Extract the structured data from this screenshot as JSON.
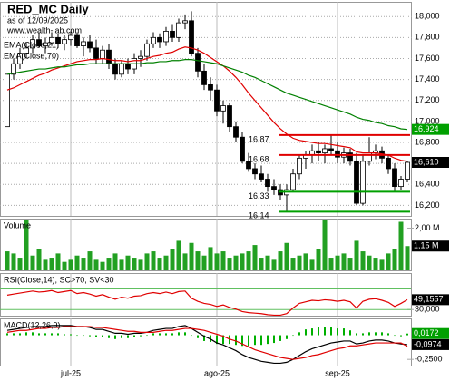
{
  "chart_data": [
    {
      "type": "candlestick",
      "title": "RED_MC Daily",
      "subtitle": "as of 12/09/2025",
      "source": "www.wealth-lab.com",
      "ylim": [
        16.1,
        18.14
      ],
      "yticks": [
        {
          "value": 16.2,
          "label": "16,200"
        },
        {
          "value": 16.4,
          "label": "16,400"
        },
        {
          "value": 16.6,
          "label": "16,600"
        },
        {
          "value": 16.8,
          "label": "16,800"
        },
        {
          "value": 17.0,
          "label": "17,000"
        },
        {
          "value": 17.2,
          "label": "17,200"
        },
        {
          "value": 17.4,
          "label": "17,400"
        },
        {
          "value": 17.6,
          "label": "17,600"
        },
        {
          "value": 17.8,
          "label": "17,800"
        },
        {
          "value": 18.0,
          "label": "18,000"
        }
      ],
      "grid": true,
      "ohlc": [
        [
          16.95,
          17.45,
          16.95,
          17.45
        ],
        [
          17.45,
          17.6,
          17.4,
          17.55
        ],
        [
          17.55,
          17.7,
          17.5,
          17.65
        ],
        [
          17.65,
          17.75,
          17.6,
          17.7
        ],
        [
          17.7,
          17.82,
          17.65,
          17.78
        ],
        [
          17.78,
          17.85,
          17.7,
          17.72
        ],
        [
          17.72,
          17.8,
          17.65,
          17.75
        ],
        [
          17.75,
          17.85,
          17.72,
          17.8
        ],
        [
          17.8,
          17.84,
          17.7,
          17.74
        ],
        [
          17.74,
          17.82,
          17.68,
          17.78
        ],
        [
          17.78,
          17.86,
          17.72,
          17.82
        ],
        [
          17.82,
          17.85,
          17.7,
          17.72
        ],
        [
          17.72,
          17.8,
          17.62,
          17.76
        ],
        [
          17.76,
          17.82,
          17.66,
          17.7
        ],
        [
          17.7,
          17.78,
          17.55,
          17.6
        ],
        [
          17.6,
          17.72,
          17.55,
          17.68
        ],
        [
          17.68,
          17.74,
          17.5,
          17.55
        ],
        [
          17.55,
          17.6,
          17.4,
          17.45
        ],
        [
          17.45,
          17.58,
          17.42,
          17.55
        ],
        [
          17.55,
          17.6,
          17.45,
          17.5
        ],
        [
          17.5,
          17.65,
          17.45,
          17.6
        ],
        [
          17.6,
          17.68,
          17.52,
          17.62
        ],
        [
          17.62,
          17.78,
          17.58,
          17.74
        ],
        [
          17.74,
          17.85,
          17.7,
          17.8
        ],
        [
          17.8,
          17.84,
          17.7,
          17.76
        ],
        [
          17.76,
          17.9,
          17.72,
          17.86
        ],
        [
          17.86,
          17.92,
          17.76,
          17.8
        ],
        [
          17.8,
          17.98,
          17.76,
          17.94
        ],
        [
          17.94,
          18.02,
          17.88,
          17.96
        ],
        [
          17.96,
          18.05,
          17.62,
          17.65
        ],
        [
          17.65,
          17.7,
          17.42,
          17.48
        ],
        [
          17.48,
          17.55,
          17.3,
          17.35
        ],
        [
          17.35,
          17.42,
          17.2,
          17.3
        ],
        [
          17.3,
          17.35,
          17.05,
          17.1
        ],
        [
          17.1,
          17.2,
          16.98,
          17.15
        ],
        [
          17.15,
          17.18,
          16.9,
          16.95
        ],
        [
          16.95,
          17.0,
          16.8,
          16.85
        ],
        [
          16.85,
          16.9,
          16.6,
          16.62
        ],
        [
          16.62,
          16.7,
          16.52,
          16.55
        ],
        [
          16.55,
          16.6,
          16.45,
          16.5
        ],
        [
          16.5,
          16.58,
          16.42,
          16.45
        ],
        [
          16.45,
          16.5,
          16.33,
          16.38
        ],
        [
          16.38,
          16.45,
          16.3,
          16.35
        ],
        [
          16.35,
          16.4,
          16.25,
          16.3
        ],
        [
          16.3,
          16.4,
          16.14,
          16.35
        ],
        [
          16.35,
          16.55,
          16.33,
          16.5
        ],
        [
          16.5,
          16.68,
          16.45,
          16.65
        ],
        [
          16.65,
          16.72,
          16.55,
          16.68
        ],
        [
          16.68,
          16.78,
          16.6,
          16.72
        ],
        [
          16.72,
          16.8,
          16.62,
          16.7
        ],
        [
          16.7,
          16.78,
          16.6,
          16.74
        ],
        [
          16.74,
          16.87,
          16.68,
          16.72
        ],
        [
          16.72,
          16.8,
          16.6,
          16.66
        ],
        [
          16.66,
          16.75,
          16.6,
          16.7
        ],
        [
          16.7,
          16.74,
          16.58,
          16.62
        ],
        [
          16.62,
          16.7,
          16.2,
          16.22
        ],
        [
          16.22,
          16.68,
          16.2,
          16.62
        ],
        [
          16.62,
          16.85,
          16.58,
          16.7
        ],
        [
          16.7,
          16.78,
          16.64,
          16.72
        ],
        [
          16.72,
          16.76,
          16.6,
          16.65
        ],
        [
          16.65,
          16.68,
          16.5,
          16.55
        ],
        [
          16.55,
          16.6,
          16.33,
          16.38
        ],
        [
          16.38,
          16.48,
          16.35,
          16.45
        ],
        [
          16.45,
          16.62,
          16.42,
          16.61
        ]
      ],
      "series": [
        {
          "name": "EMA(Close,21)",
          "color": "#e00000",
          "values": [
            17.3,
            17.32,
            17.35,
            17.38,
            17.41,
            17.44,
            17.46,
            17.49,
            17.51,
            17.53,
            17.55,
            17.57,
            17.58,
            17.59,
            17.59,
            17.6,
            17.59,
            17.58,
            17.58,
            17.57,
            17.58,
            17.58,
            17.6,
            17.62,
            17.63,
            17.65,
            17.66,
            17.69,
            17.71,
            17.7,
            17.68,
            17.65,
            17.61,
            17.57,
            17.53,
            17.48,
            17.42,
            17.35,
            17.27,
            17.2,
            17.13,
            17.06,
            16.99,
            16.93,
            16.88,
            16.84,
            16.82,
            16.81,
            16.8,
            16.79,
            16.79,
            16.78,
            16.77,
            16.76,
            16.75,
            16.71,
            16.7,
            16.7,
            16.7,
            16.69,
            16.68,
            16.65,
            16.63,
            16.62
          ]
        },
        {
          "name": "EMA(Close,70)",
          "color": "#008000",
          "values": [
            17.45,
            17.46,
            17.47,
            17.48,
            17.49,
            17.5,
            17.5,
            17.51,
            17.52,
            17.52,
            17.53,
            17.54,
            17.54,
            17.55,
            17.55,
            17.55,
            17.55,
            17.55,
            17.55,
            17.55,
            17.55,
            17.55,
            17.56,
            17.56,
            17.57,
            17.57,
            17.58,
            17.58,
            17.59,
            17.59,
            17.58,
            17.57,
            17.56,
            17.55,
            17.53,
            17.51,
            17.49,
            17.47,
            17.44,
            17.42,
            17.39,
            17.36,
            17.33,
            17.3,
            17.27,
            17.25,
            17.23,
            17.21,
            17.19,
            17.17,
            17.15,
            17.13,
            17.11,
            17.09,
            17.07,
            17.04,
            17.02,
            17.01,
            16.99,
            16.98,
            16.96,
            16.95,
            16.93,
            16.924
          ]
        }
      ],
      "levels": [
        {
          "value": 16.87,
          "label": "16,87",
          "color": "#e00000"
        },
        {
          "value": 16.68,
          "label": "16,68",
          "color": "#e00000"
        },
        {
          "value": 16.33,
          "label": "16,33",
          "color": "#00a000"
        },
        {
          "value": 16.14,
          "label": "16,14",
          "color": "#00a000"
        }
      ],
      "last_labels": [
        {
          "value": 16.924,
          "label": "16,924",
          "color": "#00a000"
        },
        {
          "value": 16.61,
          "label": "16,610",
          "color": "#000000"
        }
      ]
    },
    {
      "type": "bar",
      "title": "Volume",
      "ylim": [
        0,
        2.45
      ],
      "yticks": [
        {
          "value": 2,
          "label": "2,00 M"
        }
      ],
      "color": "#22a022",
      "values": [
        0.9,
        0.8,
        0.6,
        2.4,
        0.7,
        1.0,
        0.5,
        0.6,
        0.8,
        0.4,
        0.5,
        0.7,
        0.6,
        0.9,
        0.5,
        0.4,
        0.6,
        0.8,
        0.5,
        0.7,
        0.6,
        0.5,
        0.8,
        0.9,
        0.6,
        0.7,
        1.0,
        1.4,
        0.8,
        1.3,
        0.9,
        0.7,
        1.1,
        0.8,
        0.9,
        0.6,
        0.7,
        0.8,
        0.9,
        1.2,
        0.6,
        0.7,
        0.5,
        0.9,
        1.3,
        0.6,
        0.7,
        0.8,
        0.5,
        1.0,
        2.4,
        0.6,
        0.7,
        0.8,
        0.6,
        1.4,
        0.9,
        0.7,
        0.6,
        0.5,
        0.8,
        1.0,
        2.3,
        1.15
      ],
      "last_labels": [
        {
          "value": 1.15,
          "label": "1,15 M",
          "color": "#000000"
        }
      ]
    },
    {
      "type": "line",
      "title": "RSI(Close,14), SC>70, SV<30",
      "ylim": [
        18,
        101
      ],
      "yticks": [
        {
          "value": 30,
          "label": "30,000"
        }
      ],
      "levels": [
        70,
        30
      ],
      "level_color": "#60c060",
      "series": [
        {
          "color": "#e00000",
          "values": [
            58,
            60,
            62,
            64,
            66,
            64,
            65,
            67,
            63,
            65,
            67,
            61,
            63,
            60,
            56,
            59,
            54,
            50,
            54,
            52,
            56,
            57,
            61,
            63,
            61,
            64,
            61,
            65,
            66,
            52,
            46,
            42,
            40,
            36,
            39,
            34,
            31,
            26,
            24,
            23,
            22,
            20,
            19,
            19,
            22,
            33,
            42,
            45,
            48,
            47,
            49,
            48,
            46,
            48,
            45,
            33,
            46,
            50,
            51,
            48,
            44,
            36,
            42,
            49.1557
          ]
        }
      ],
      "last_labels": [
        {
          "value": 49.1557,
          "label": "49,1557",
          "color": "#000000"
        }
      ]
    },
    {
      "type": "line",
      "title": "MACD(12,26,9)",
      "ylim": [
        -0.314,
        0.174
      ],
      "yticks": [
        {
          "value": -0.25,
          "label": "-0,2500"
        }
      ],
      "series": [
        {
          "color": "#00b000",
          "draw": "bar",
          "values": [
            0.02,
            0.02,
            0.02,
            0.03,
            0.03,
            0.02,
            0.02,
            0.02,
            0.02,
            0.01,
            0.01,
            0,
            0,
            -0.01,
            -0.02,
            -0.02,
            -0.03,
            -0.04,
            -0.03,
            -0.03,
            -0.02,
            -0.01,
            0,
            0.02,
            0.02,
            0.02,
            0.02,
            0.03,
            0.03,
            0,
            -0.03,
            -0.06,
            -0.07,
            -0.09,
            -0.09,
            -0.09,
            -0.1,
            -0.11,
            -0.11,
            -0.1,
            -0.1,
            -0.09,
            -0.08,
            -0.06,
            -0.04,
            0,
            0.03,
            0.06,
            0.07,
            0.08,
            0.08,
            0.08,
            0.07,
            0.07,
            0.05,
            0.02,
            0.02,
            0.03,
            0.03,
            0.03,
            0.02,
            0,
            -0.01,
            0.0172
          ]
        },
        {
          "color": "#000000",
          "values": [
            0.05,
            0.06,
            0.07,
            0.08,
            0.09,
            0.09,
            0.09,
            0.1,
            0.1,
            0.1,
            0.1,
            0.09,
            0.09,
            0.08,
            0.06,
            0.06,
            0.04,
            0.02,
            0.02,
            0.01,
            0.02,
            0.02,
            0.03,
            0.05,
            0.06,
            0.07,
            0.07,
            0.09,
            0.1,
            0.07,
            0.03,
            -0.01,
            -0.04,
            -0.08,
            -0.1,
            -0.13,
            -0.16,
            -0.2,
            -0.23,
            -0.25,
            -0.27,
            -0.28,
            -0.29,
            -0.29,
            -0.28,
            -0.25,
            -0.21,
            -0.17,
            -0.14,
            -0.12,
            -0.1,
            -0.08,
            -0.07,
            -0.06,
            -0.06,
            -0.09,
            -0.08,
            -0.06,
            -0.05,
            -0.05,
            -0.06,
            -0.08,
            -0.09,
            -0.0974
          ]
        },
        {
          "color": "#e00000",
          "values": [
            0.03,
            0.04,
            0.05,
            0.05,
            0.06,
            0.07,
            0.07,
            0.08,
            0.08,
            0.09,
            0.09,
            0.09,
            0.09,
            0.09,
            0.08,
            0.08,
            0.07,
            0.06,
            0.05,
            0.04,
            0.04,
            0.03,
            0.03,
            0.03,
            0.04,
            0.05,
            0.05,
            0.06,
            0.07,
            0.07,
            0.06,
            0.05,
            0.03,
            0.01,
            -0.01,
            -0.04,
            -0.06,
            -0.09,
            -0.12,
            -0.15,
            -0.17,
            -0.19,
            -0.21,
            -0.23,
            -0.24,
            -0.25,
            -0.24,
            -0.23,
            -0.21,
            -0.2,
            -0.18,
            -0.16,
            -0.14,
            -0.13,
            -0.11,
            -0.11,
            -0.1,
            -0.09,
            -0.08,
            -0.08,
            -0.08,
            -0.08,
            -0.08,
            -0.1146
          ]
        }
      ],
      "categories": [
        null,
        null,
        null,
        null,
        null,
        null,
        null,
        null,
        null,
        null,
        "jul-25",
        null,
        null,
        null,
        null,
        null,
        null,
        null,
        null,
        null,
        null,
        null,
        null,
        null,
        null,
        null,
        null,
        null,
        null,
        null,
        null,
        null,
        null,
        "ago-25",
        null,
        null,
        null,
        null,
        null,
        null,
        null,
        null,
        null,
        null,
        null,
        null,
        null,
        null,
        null,
        null,
        null,
        null,
        "sep-25",
        null,
        null,
        null,
        null,
        null,
        null,
        null,
        null,
        null,
        null,
        null
      ],
      "last_labels": [
        {
          "value": 0.0172,
          "label": "0,0172",
          "color": "#00a000"
        },
        {
          "value": -0.0974,
          "label": "-0,0974",
          "color": "#000000"
        }
      ]
    }
  ]
}
